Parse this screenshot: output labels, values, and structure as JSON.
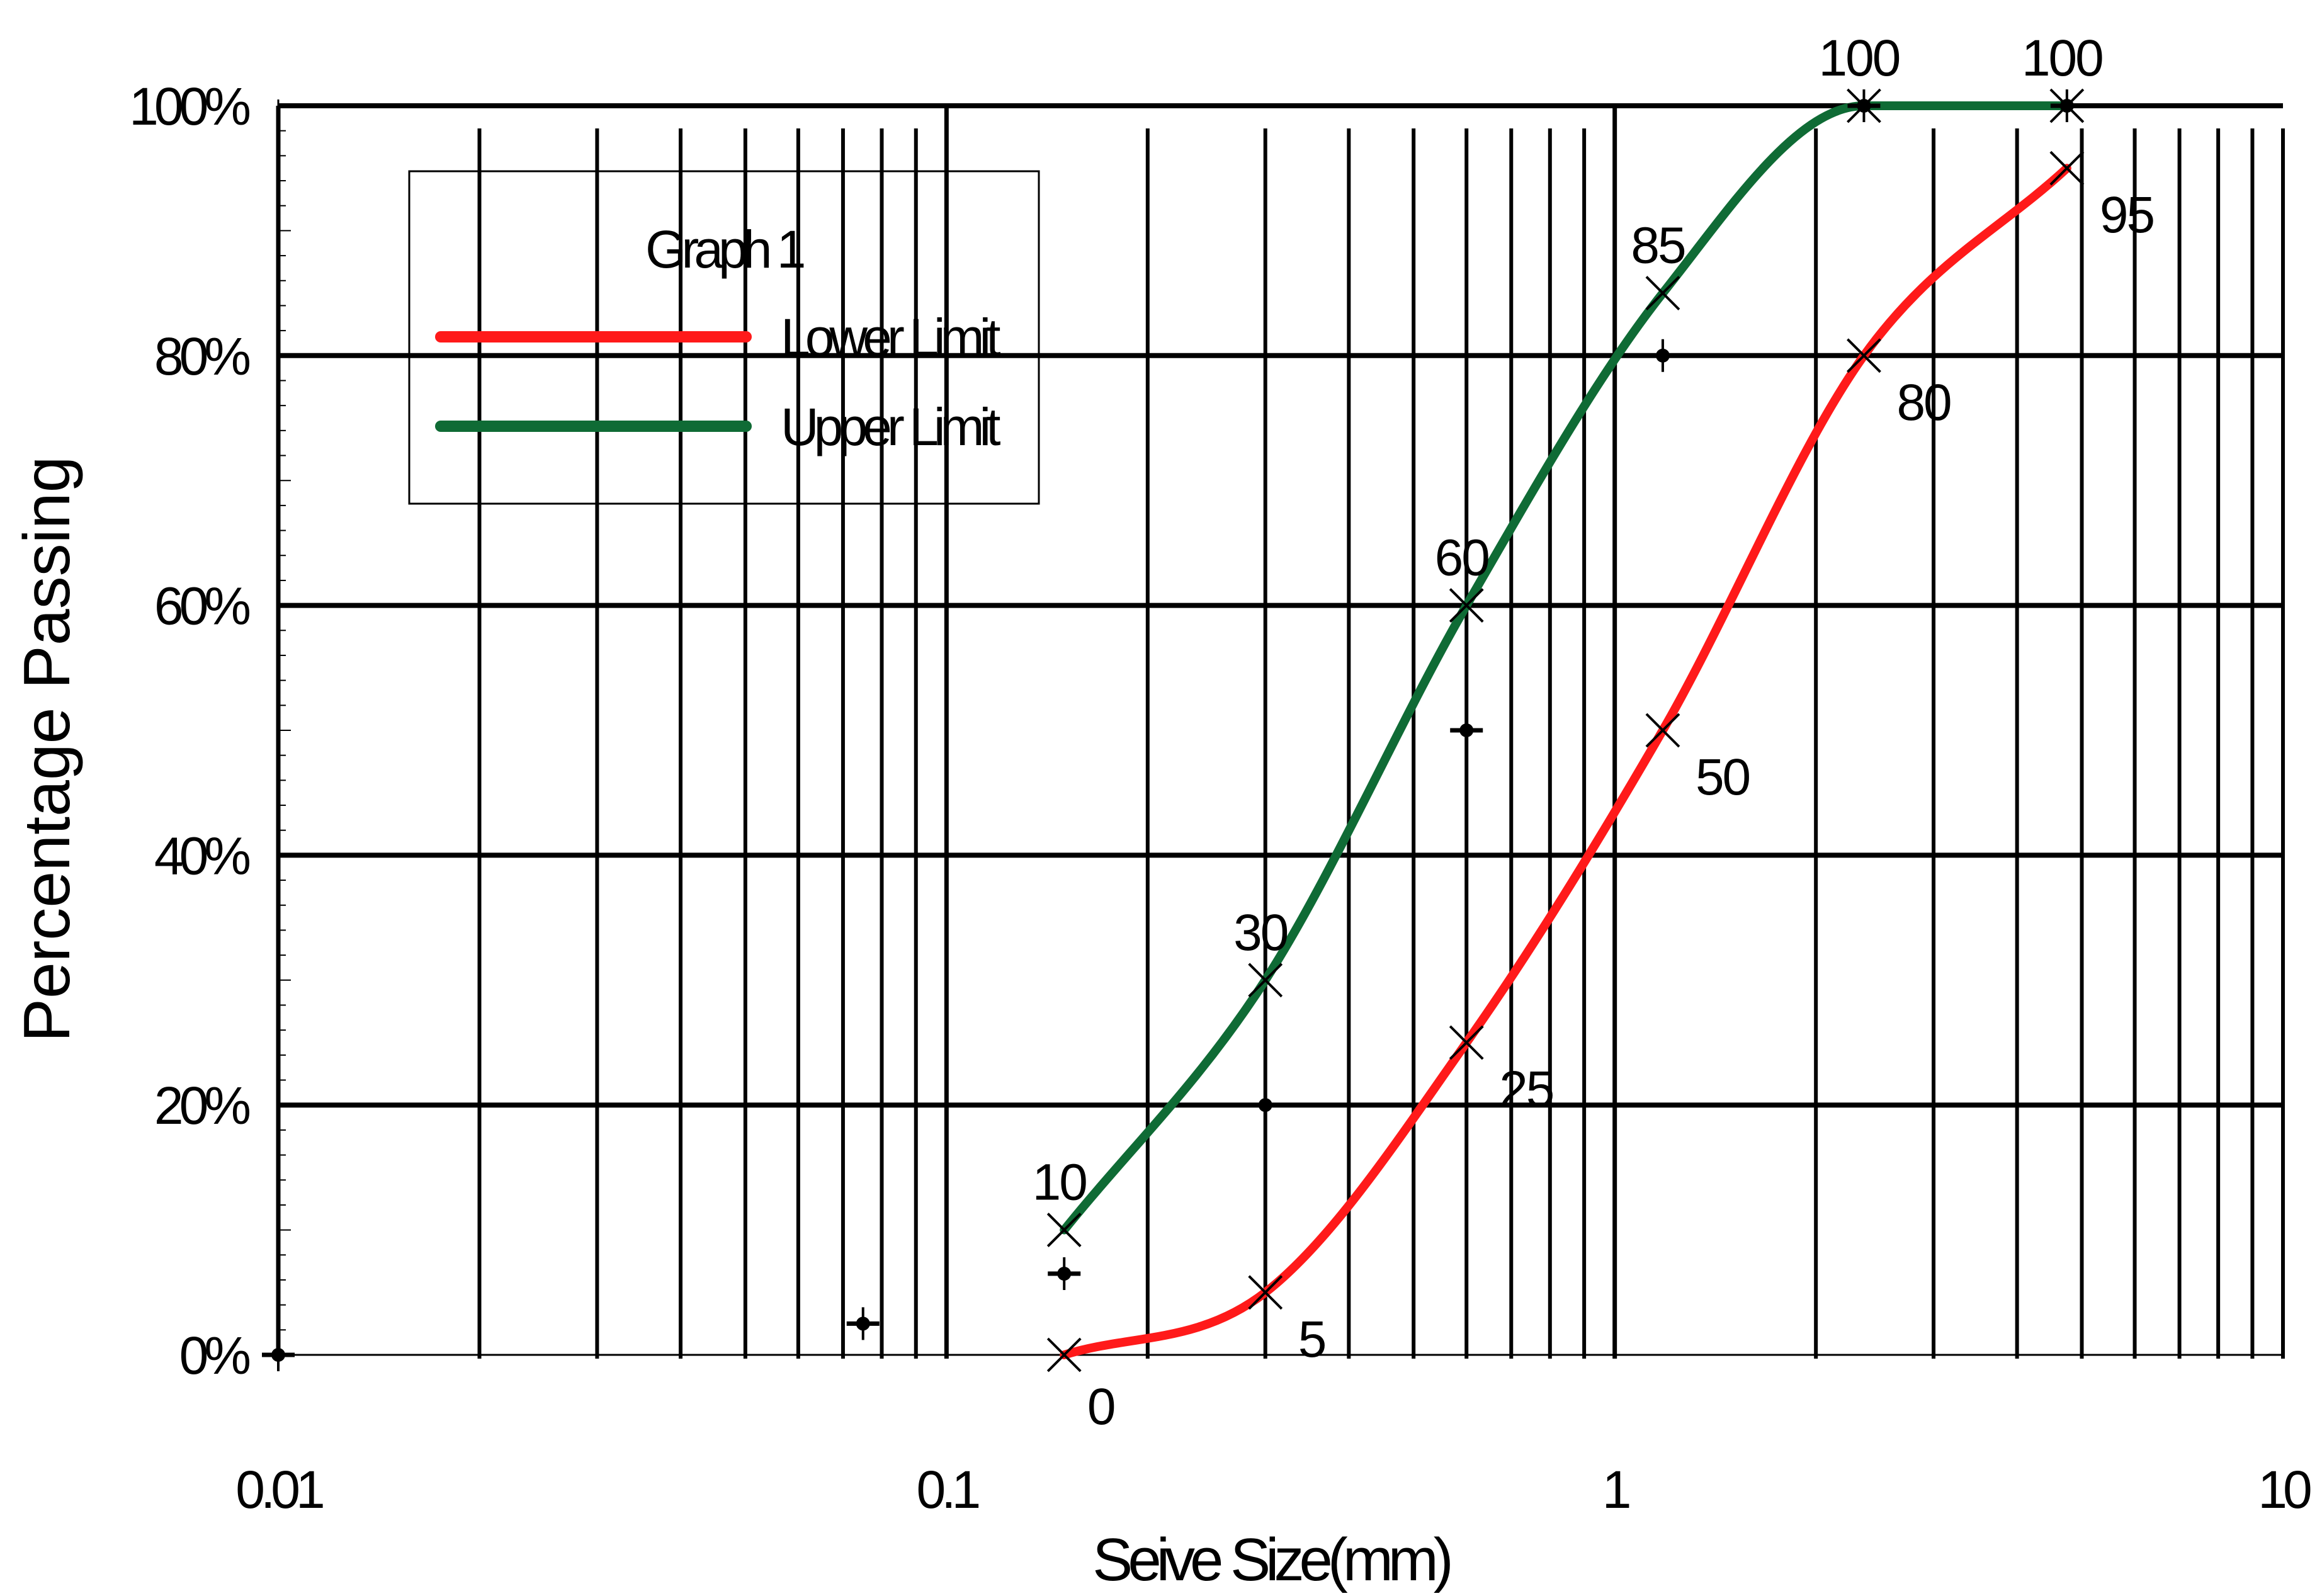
{
  "chart_data": {
    "type": "line",
    "title": "",
    "xlabel": "Seive Size(mm)",
    "ylabel": "Percentage Passing",
    "xscale": "log",
    "xlim": [
      0.01,
      10
    ],
    "ylim": [
      0,
      100
    ],
    "x_tick_labels": [
      "0.01",
      "0.1",
      "1",
      "10"
    ],
    "y_tick_labels": [
      "0%",
      "20%",
      "40%",
      "60%",
      "80%",
      "100%"
    ],
    "grid": true,
    "legend": {
      "title": "Graph 1",
      "placement": "top-left",
      "entries": [
        "Lower Limit",
        "Upper Limit"
      ]
    },
    "colors": {
      "lower": "#ff1a1a",
      "upper": "#0f6b35",
      "grid": "#000000"
    },
    "sieve_sizes": [
      0.15,
      0.3,
      0.6,
      1.18,
      2.36,
      4.75
    ],
    "series": [
      {
        "name": "Lower Limit",
        "color": "#ff1a1a",
        "x": [
          0.15,
          0.3,
          0.6,
          1.18,
          2.36,
          4.75
        ],
        "y": [
          0,
          5,
          25,
          50,
          80,
          95
        ],
        "point_labels": [
          "0",
          "5",
          "25",
          "50",
          "80",
          "95"
        ]
      },
      {
        "name": "Upper Limit",
        "color": "#0f6b35",
        "x": [
          0.15,
          0.3,
          0.6,
          1.18,
          2.36,
          4.75
        ],
        "y": [
          10,
          30,
          60,
          85,
          100,
          100
        ],
        "point_labels": [
          "10",
          "30",
          "60",
          "85",
          "100",
          "100"
        ]
      },
      {
        "name": "",
        "marker": "plus",
        "color": "#000000",
        "x": [
          0.01,
          0.075,
          0.15,
          0.3,
          0.6,
          1.18,
          2.36,
          4.75
        ],
        "y": [
          0,
          2.5,
          6.5,
          20,
          50,
          80,
          100,
          100
        ]
      }
    ]
  }
}
